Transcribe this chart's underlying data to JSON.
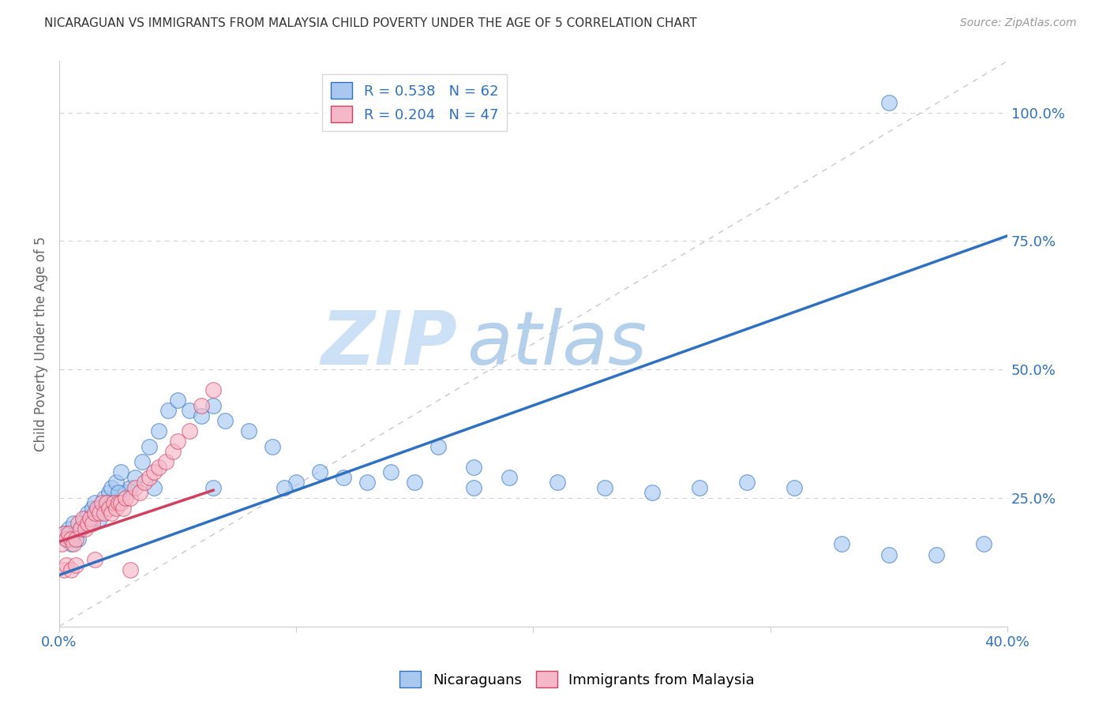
{
  "title": "NICARAGUAN VS IMMIGRANTS FROM MALAYSIA CHILD POVERTY UNDER THE AGE OF 5 CORRELATION CHART",
  "source": "Source: ZipAtlas.com",
  "ylabel": "Child Poverty Under the Age of 5",
  "xlabel_blue": "Nicaraguans",
  "xlabel_pink": "Immigrants from Malaysia",
  "legend_blue_r": "R = 0.538",
  "legend_blue_n": "N = 62",
  "legend_pink_r": "R = 0.204",
  "legend_pink_n": "N = 47",
  "xlim": [
    0.0,
    0.4
  ],
  "ylim": [
    0.0,
    1.1
  ],
  "blue_color": "#A8C8F0",
  "pink_color": "#F5B8C8",
  "blue_line_color": "#3070C0",
  "pink_line_color": "#D04060",
  "watermark_zip": "ZIP",
  "watermark_atlas": "atlas",
  "blue_scatter_x": [
    0.002,
    0.003,
    0.004,
    0.005,
    0.006,
    0.007,
    0.008,
    0.009,
    0.01,
    0.011,
    0.012,
    0.013,
    0.014,
    0.015,
    0.016,
    0.017,
    0.018,
    0.019,
    0.02,
    0.021,
    0.022,
    0.024,
    0.026,
    0.028,
    0.03,
    0.032,
    0.035,
    0.038,
    0.042,
    0.046,
    0.05,
    0.055,
    0.06,
    0.065,
    0.07,
    0.08,
    0.09,
    0.1,
    0.11,
    0.12,
    0.13,
    0.14,
    0.15,
    0.16,
    0.175,
    0.19,
    0.21,
    0.23,
    0.25,
    0.27,
    0.29,
    0.31,
    0.33,
    0.35,
    0.37,
    0.39,
    0.175,
    0.095,
    0.065,
    0.04,
    0.025,
    0.35
  ],
  "blue_scatter_y": [
    0.18,
    0.17,
    0.19,
    0.16,
    0.2,
    0.18,
    0.17,
    0.19,
    0.2,
    0.21,
    0.22,
    0.2,
    0.23,
    0.24,
    0.22,
    0.21,
    0.23,
    0.25,
    0.24,
    0.26,
    0.27,
    0.28,
    0.3,
    0.26,
    0.27,
    0.29,
    0.32,
    0.35,
    0.38,
    0.42,
    0.44,
    0.42,
    0.41,
    0.43,
    0.4,
    0.38,
    0.35,
    0.28,
    0.3,
    0.29,
    0.28,
    0.3,
    0.28,
    0.35,
    0.31,
    0.29,
    0.28,
    0.27,
    0.26,
    0.27,
    0.28,
    0.27,
    0.16,
    0.14,
    0.14,
    0.16,
    0.27,
    0.27,
    0.27,
    0.27,
    0.26,
    1.02
  ],
  "pink_scatter_x": [
    0.001,
    0.002,
    0.003,
    0.004,
    0.005,
    0.006,
    0.007,
    0.008,
    0.009,
    0.01,
    0.011,
    0.012,
    0.013,
    0.014,
    0.015,
    0.016,
    0.017,
    0.018,
    0.019,
    0.02,
    0.021,
    0.022,
    0.023,
    0.024,
    0.025,
    0.026,
    0.027,
    0.028,
    0.03,
    0.032,
    0.034,
    0.036,
    0.038,
    0.04,
    0.042,
    0.045,
    0.048,
    0.05,
    0.055,
    0.06,
    0.065,
    0.002,
    0.003,
    0.005,
    0.007,
    0.015,
    0.03
  ],
  "pink_scatter_y": [
    0.16,
    0.18,
    0.17,
    0.18,
    0.17,
    0.16,
    0.17,
    0.2,
    0.19,
    0.21,
    0.19,
    0.2,
    0.21,
    0.2,
    0.22,
    0.23,
    0.22,
    0.24,
    0.22,
    0.24,
    0.23,
    0.22,
    0.24,
    0.23,
    0.24,
    0.24,
    0.23,
    0.25,
    0.25,
    0.27,
    0.26,
    0.28,
    0.29,
    0.3,
    0.31,
    0.32,
    0.34,
    0.36,
    0.38,
    0.43,
    0.46,
    0.11,
    0.12,
    0.11,
    0.12,
    0.13,
    0.11
  ],
  "blue_line_x": [
    0.0,
    0.4
  ],
  "blue_line_y": [
    0.1,
    0.76
  ],
  "pink_line_x": [
    0.0,
    0.065
  ],
  "pink_line_y": [
    0.165,
    0.265
  ],
  "diagonal_line_x": [
    0.0,
    0.4
  ],
  "diagonal_line_y": [
    0.0,
    1.1
  ]
}
